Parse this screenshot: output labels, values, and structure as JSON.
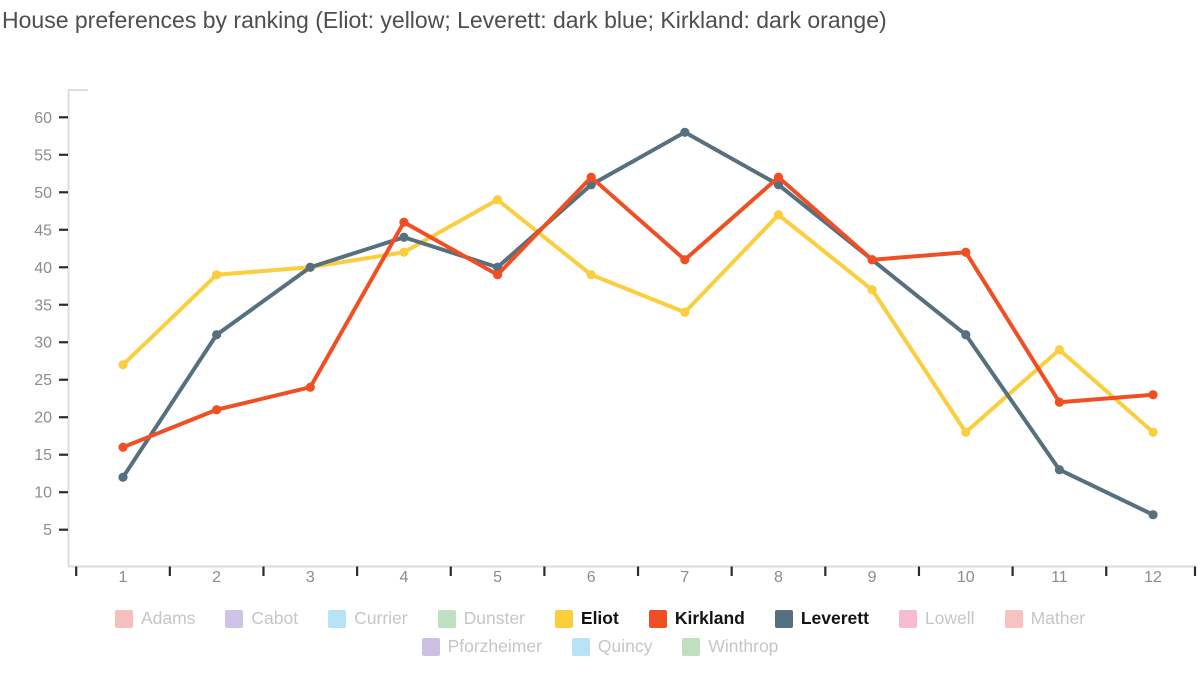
{
  "title": "House preferences by ranking (Eliot: yellow; Leverett: dark blue; Kirkland: dark orange)",
  "chart_data": {
    "type": "line",
    "categories": [
      "1",
      "2",
      "3",
      "4",
      "5",
      "6",
      "7",
      "8",
      "9",
      "10",
      "11",
      "12"
    ],
    "series": [
      {
        "name": "Eliot",
        "color": "#FBCE3D",
        "values": [
          27,
          39,
          40,
          42,
          49,
          39,
          34,
          47,
          37,
          18,
          29,
          18
        ]
      },
      {
        "name": "Leverett",
        "color": "#56707F",
        "values": [
          12,
          31,
          40,
          44,
          40,
          51,
          58,
          51,
          41,
          31,
          13,
          7
        ]
      },
      {
        "name": "Kirkland",
        "color": "#F04F24",
        "values": [
          16,
          21,
          24,
          46,
          39,
          52,
          41,
          52,
          41,
          42,
          22,
          23
        ]
      }
    ],
    "xlabel": "",
    "ylabel": "",
    "ylim": [
      2,
      62
    ],
    "y_ticks": [
      5,
      10,
      15,
      20,
      25,
      30,
      35,
      40,
      45,
      50,
      55,
      60
    ],
    "grid": false,
    "legend_position": "bottom",
    "marker": "circle",
    "line_width": 4
  },
  "axis_style": {
    "domain_color": "#dcdcdc",
    "tick_color": "#2b2b2b",
    "tick_label_color": "#8c8c8c",
    "tick_label_size": 16
  },
  "legend": {
    "rows": [
      [
        {
          "label": "Adams",
          "color": "#F5BFBD",
          "active": false
        },
        {
          "label": "Cabot",
          "color": "#CFC3E7",
          "active": false
        },
        {
          "label": "Currier",
          "color": "#B8E2F6",
          "active": false
        },
        {
          "label": "Dunster",
          "color": "#C1DFC1",
          "active": false
        },
        {
          "label": "Eliot",
          "color": "#FBCE3D",
          "active": true
        },
        {
          "label": "Kirkland",
          "color": "#F04F24",
          "active": true
        },
        {
          "label": "Leverett",
          "color": "#56707F",
          "active": true
        },
        {
          "label": "Lowell",
          "color": "#F7BCCE",
          "active": false
        },
        {
          "label": "Mather",
          "color": "#F6C3C0",
          "active": false
        }
      ],
      [
        {
          "label": "Pforzheimer",
          "color": "#CCC0E5",
          "active": false
        },
        {
          "label": "Quincy",
          "color": "#B8E2F6",
          "active": false
        },
        {
          "label": "Winthrop",
          "color": "#BFDFBF",
          "active": false
        }
      ]
    ]
  }
}
